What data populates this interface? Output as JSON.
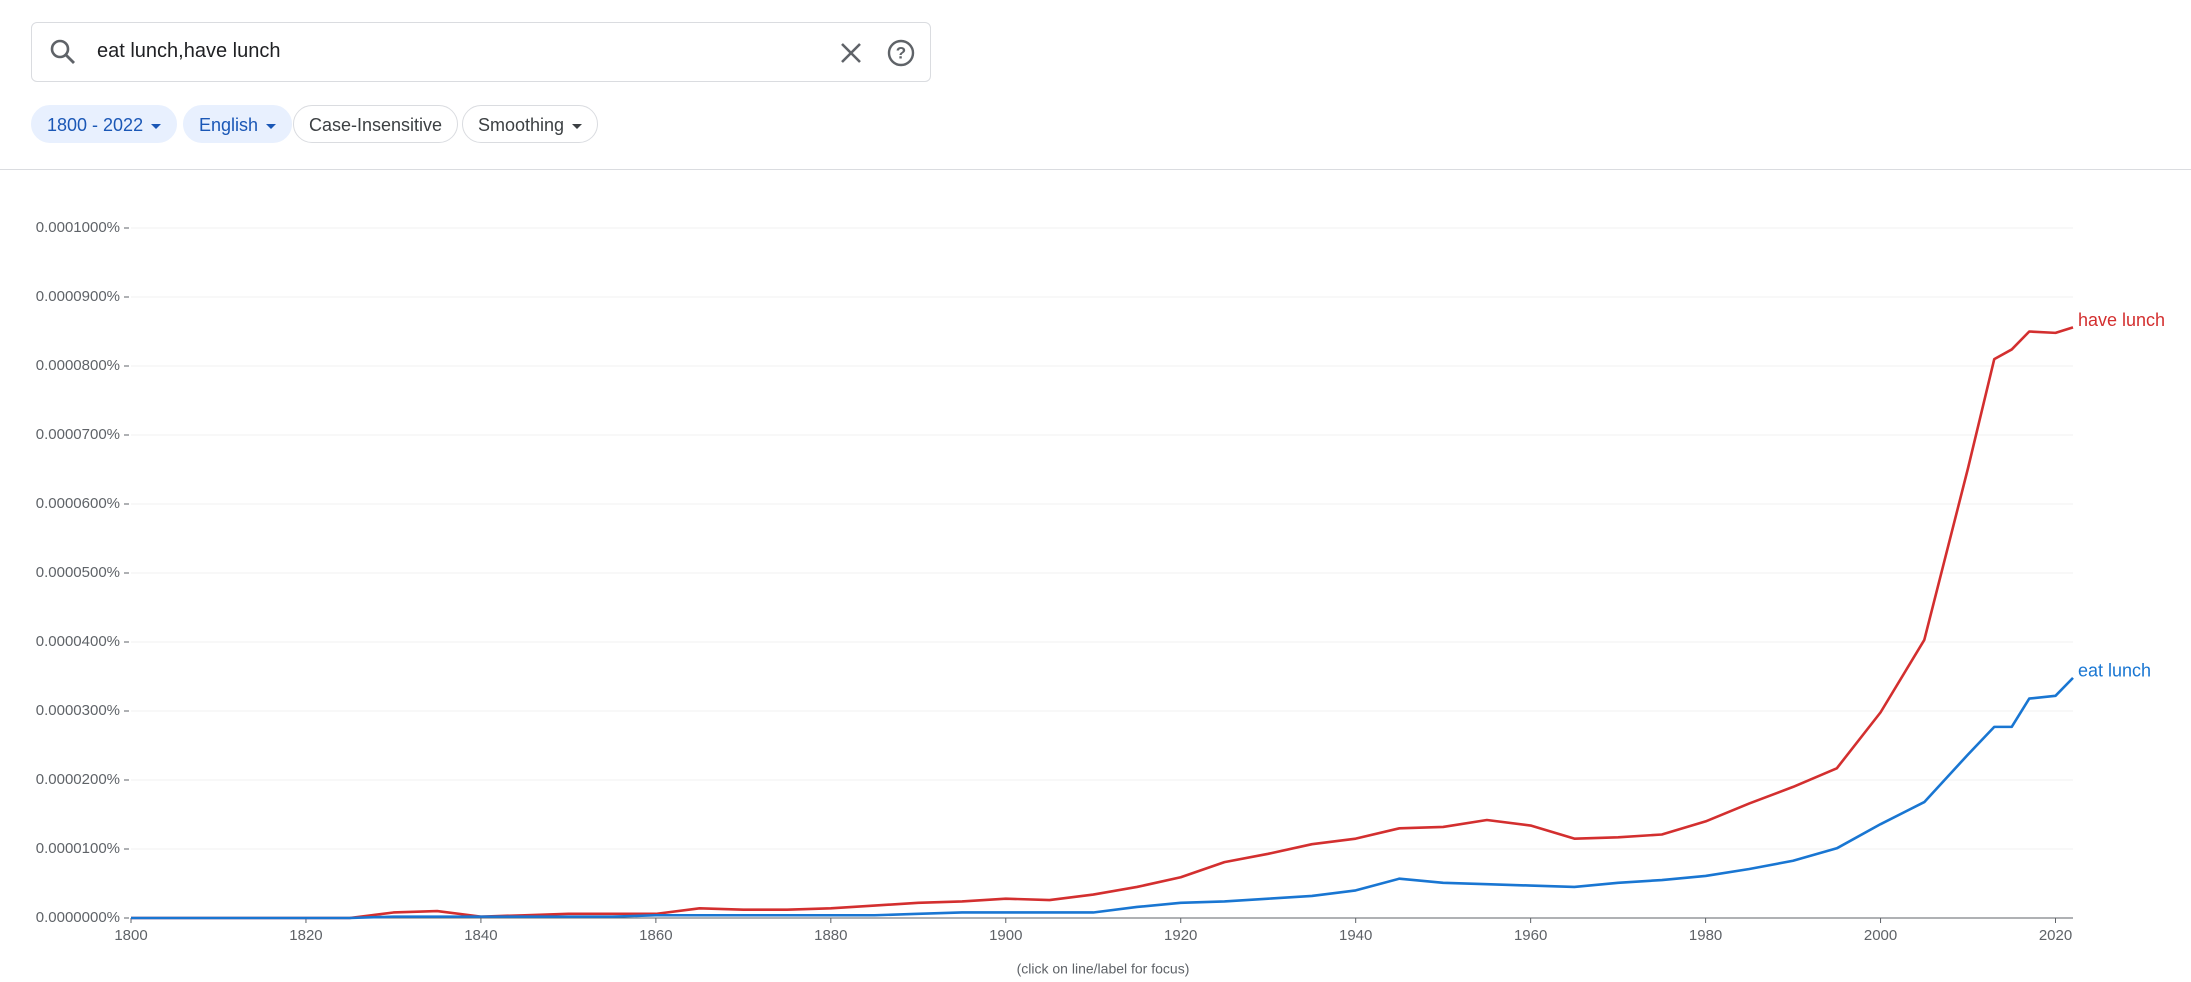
{
  "search": {
    "query": "eat lunch,have lunch"
  },
  "chips": [
    "1800 - 2022",
    "English",
    "Case-Insensitive",
    "Smoothing"
  ],
  "chart_data": {
    "type": "line",
    "note": "(click on line/label for focus)",
    "x": [
      1800,
      1805,
      1810,
      1815,
      1820,
      1825,
      1830,
      1835,
      1840,
      1845,
      1850,
      1855,
      1860,
      1865,
      1870,
      1875,
      1880,
      1885,
      1890,
      1895,
      1900,
      1905,
      1910,
      1915,
      1920,
      1925,
      1930,
      1935,
      1940,
      1945,
      1950,
      1955,
      1960,
      1965,
      1970,
      1975,
      1980,
      1985,
      1990,
      1995,
      2000,
      2005,
      2010,
      2013,
      2015,
      2017,
      2020,
      2022
    ],
    "series": [
      {
        "name": "have lunch",
        "color": "#d32f2f",
        "values": [
          0,
          0,
          0,
          0,
          0,
          0,
          8e-07,
          1e-06,
          2e-07,
          4e-07,
          6e-07,
          6e-07,
          6e-07,
          1.4e-06,
          1.2e-06,
          1.2e-06,
          1.4e-06,
          1.8e-06,
          2.2e-06,
          2.4e-06,
          2.8e-06,
          2.6e-06,
          3.4e-06,
          4.5e-06,
          5.9e-06,
          8.1e-06,
          9.3e-06,
          1.07e-05,
          1.15e-05,
          1.3e-05,
          1.32e-05,
          1.42e-05,
          1.34e-05,
          1.15e-05,
          1.17e-05,
          1.21e-05,
          1.4e-05,
          1.66e-05,
          1.9e-05,
          2.17e-05,
          2.98e-05,
          4.03e-05,
          6.52e-05,
          8.1e-05,
          8.24e-05,
          8.5e-05,
          8.48e-05,
          8.56e-05
        ]
      },
      {
        "name": "eat lunch",
        "color": "#1976d2",
        "values": [
          0,
          0,
          0,
          0,
          0,
          0,
          2e-07,
          2e-07,
          2e-07,
          2e-07,
          2e-07,
          2e-07,
          4e-07,
          4e-07,
          4e-07,
          4e-07,
          4e-07,
          4e-07,
          6e-07,
          8e-07,
          8e-07,
          8e-07,
          8e-07,
          1.6e-06,
          2.2e-06,
          2.4e-06,
          2.8e-06,
          3.2e-06,
          4e-06,
          5.7e-06,
          5.1e-06,
          4.9e-06,
          4.7e-06,
          4.5e-06,
          5.1e-06,
          5.5e-06,
          6.1e-06,
          7.1e-06,
          8.3e-06,
          1.01e-05,
          1.36e-05,
          1.68e-05,
          2.37e-05,
          2.77e-05,
          2.77e-05,
          3.18e-05,
          3.22e-05,
          3.48e-05
        ]
      }
    ],
    "xlim": [
      1800,
      2022
    ],
    "xticks": [
      1800,
      1820,
      1840,
      1860,
      1880,
      1900,
      1920,
      1940,
      1960,
      1980,
      2000,
      2020
    ],
    "ylim": [
      0,
      0.0001
    ],
    "yticks": [
      {
        "value": 0,
        "label": "0.0000000%"
      },
      {
        "value": 1e-05,
        "label": "0.0000100%"
      },
      {
        "value": 2e-05,
        "label": "0.0000200%"
      },
      {
        "value": 3e-05,
        "label": "0.0000300%"
      },
      {
        "value": 4e-05,
        "label": "0.0000400%"
      },
      {
        "value": 5e-05,
        "label": "0.0000500%"
      },
      {
        "value": 6e-05,
        "label": "0.0000600%"
      },
      {
        "value": 7e-05,
        "label": "0.0000700%"
      },
      {
        "value": 8e-05,
        "label": "0.0000800%"
      },
      {
        "value": 9e-05,
        "label": "0.0000900%"
      },
      {
        "value": 0.0001,
        "label": "0.0001000%"
      }
    ],
    "grid": true
  }
}
